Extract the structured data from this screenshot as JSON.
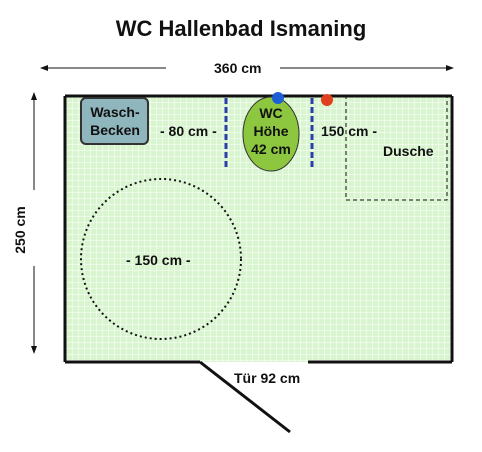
{
  "title": "WC Hallenbad Ismaning",
  "dimensions": {
    "width": "360 cm",
    "height": "250 cm"
  },
  "fixtures": {
    "sink": {
      "line1": "Wasch-",
      "line2": "Becken"
    },
    "gap_left": "- 80 cm -",
    "wc": {
      "line1": "WC",
      "line2": "Höhe",
      "line3": "42 cm"
    },
    "gap_right": "150 cm -",
    "shower": "Dusche",
    "turning_circle": "- 150 cm -",
    "door": "Tür 92 cm"
  },
  "colors": {
    "floor": "#d9f5d0",
    "grid": "#ffffff",
    "wall": "#111111",
    "sink_fill": "#8fb5bd",
    "wc_fill": "#8dc63f",
    "handrail": "#2b3fa8",
    "blue_dot": "#1f5fd6",
    "red_dot": "#e04020"
  }
}
